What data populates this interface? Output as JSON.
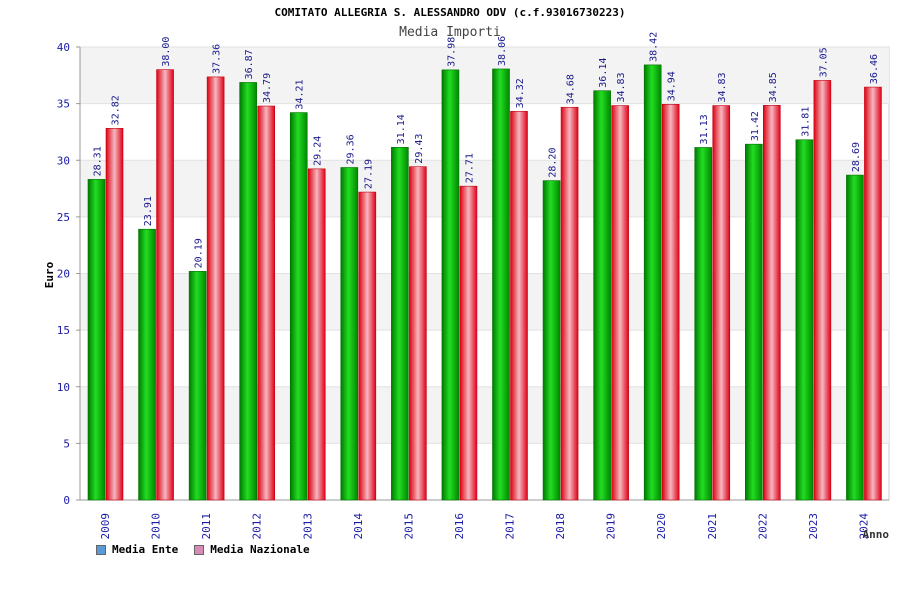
{
  "chart_data": {
    "type": "bar",
    "title": "COMITATO ALLEGRIA S. ALESSANDRO ODV (c.f.93016730223)",
    "subtitle": "Media Importi",
    "xlabel": "Anno",
    "ylabel": "Euro",
    "ylim": [
      0,
      40
    ],
    "yticks": [
      0,
      5,
      10,
      15,
      20,
      25,
      30,
      35,
      40
    ],
    "grid": true,
    "legend_position": "bottom-left",
    "categories": [
      "2009",
      "2010",
      "2011",
      "2012",
      "2013",
      "2014",
      "2015",
      "2016",
      "2017",
      "2018",
      "2019",
      "2020",
      "2021",
      "2022",
      "2023",
      "2024"
    ],
    "series": [
      {
        "name": "Media Ente",
        "color": "#00aa00",
        "legend_color": "#5b9bd5",
        "values": [
          28.31,
          23.91,
          20.19,
          36.87,
          34.21,
          29.36,
          31.14,
          37.98,
          38.06,
          28.2,
          36.14,
          38.42,
          31.13,
          31.42,
          31.81,
          28.69
        ],
        "labels": [
          "28.31",
          "23.91",
          "20.19",
          "36.87",
          "34.21",
          "29.36",
          "31.14",
          "37.98",
          "38.06",
          "28.20",
          "36.14",
          "38.42",
          "31.13",
          "31.42",
          "31.81",
          "28.69"
        ]
      },
      {
        "name": "Media Nazionale",
        "color": "#ee1122",
        "legend_color": "#d98cb3",
        "values": [
          32.82,
          38.0,
          37.36,
          34.79,
          29.24,
          27.19,
          29.43,
          27.71,
          34.32,
          34.68,
          34.83,
          34.94,
          34.83,
          34.85,
          37.05,
          36.46
        ],
        "labels": [
          "32.82",
          "38.00",
          "37.36",
          "34.79",
          "29.24",
          "27.19",
          "29.43",
          "27.71",
          "34.32",
          "34.68",
          "34.83",
          "34.94",
          "34.83",
          "34.85",
          "37.05",
          "36.46"
        ]
      }
    ]
  }
}
